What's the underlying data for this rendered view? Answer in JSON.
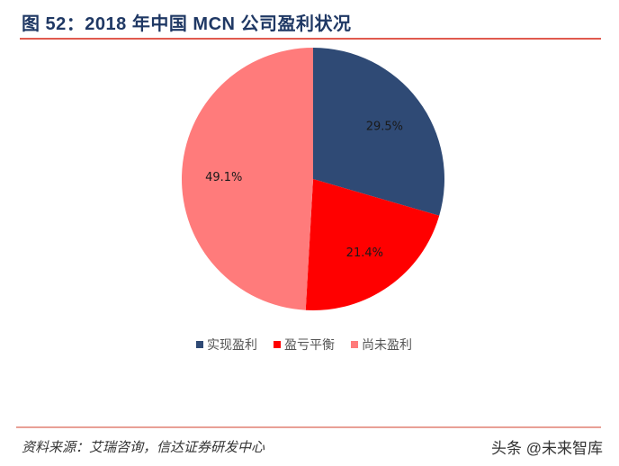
{
  "header": {
    "title": "图 52：2018 年中国 MCN 公司盈利状况"
  },
  "chart_data": {
    "type": "pie",
    "title": "2018 年中国 MCN 公司盈利状况",
    "categories": [
      "实现盈利",
      "盈亏平衡",
      "尚未盈利"
    ],
    "values": [
      29.5,
      21.4,
      49.1
    ],
    "labels": [
      "29.5%",
      "21.4%",
      "49.1%"
    ],
    "colors": [
      "#2f4a75",
      "#ff0000",
      "#ff7b7b"
    ],
    "start_angle_deg": 0,
    "direction": "clockwise",
    "legend_position": "bottom"
  },
  "legend": {
    "items": [
      {
        "label": "实现盈利",
        "color": "#2f4a75"
      },
      {
        "label": "盈亏平衡",
        "color": "#ff0000"
      },
      {
        "label": "尚未盈利",
        "color": "#ff7b7b"
      }
    ]
  },
  "footer": {
    "source": "资料来源：艾瑞咨询，信达证券研发中心",
    "watermark": "头条 @未来智库"
  }
}
